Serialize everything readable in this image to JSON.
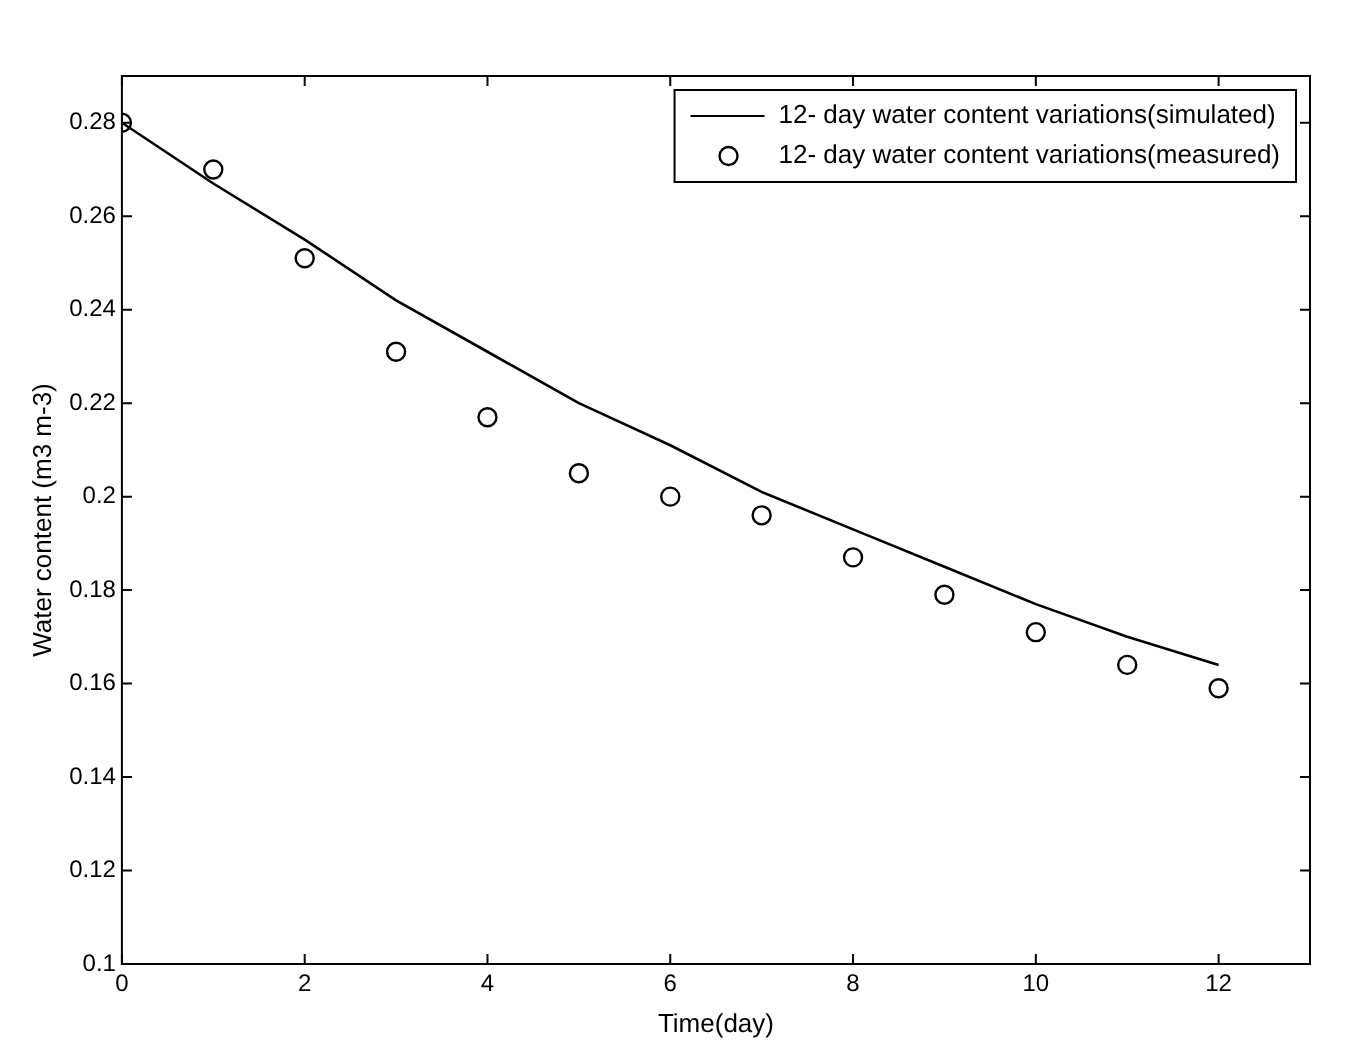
{
  "chart_data": {
    "type": "line",
    "xlabel": "Time(day)",
    "ylabel": "Water content (m3 m-3)",
    "x": [
      0,
      1,
      2,
      3,
      4,
      5,
      6,
      7,
      8,
      9,
      10,
      11,
      12
    ],
    "series": [
      {
        "name": "12- day water content variations(simulated)",
        "type": "line",
        "color": "#000000",
        "marker": "none",
        "line_style": "solid",
        "values": [
          0.28,
          0.267,
          0.255,
          0.242,
          0.231,
          0.22,
          0.211,
          0.201,
          0.193,
          0.185,
          0.177,
          0.17,
          0.164
        ]
      },
      {
        "name": "12- day water content variations(measured)",
        "type": "scatter",
        "color": "#000000",
        "marker": "circle",
        "values": [
          0.28,
          0.27,
          0.251,
          0.231,
          0.217,
          0.205,
          0.2,
          0.196,
          0.187,
          0.179,
          0.171,
          0.164,
          0.159
        ]
      }
    ],
    "xlim": [
      0,
      13
    ],
    "xticks": [
      0,
      2,
      4,
      6,
      8,
      10,
      12
    ],
    "ylim": [
      0.1,
      0.29
    ],
    "yticks": [
      0.1,
      0.12,
      0.14,
      0.16,
      0.18,
      0.2,
      0.22,
      0.24,
      0.26,
      0.28
    ],
    "grid": false,
    "legend": "top right"
  }
}
